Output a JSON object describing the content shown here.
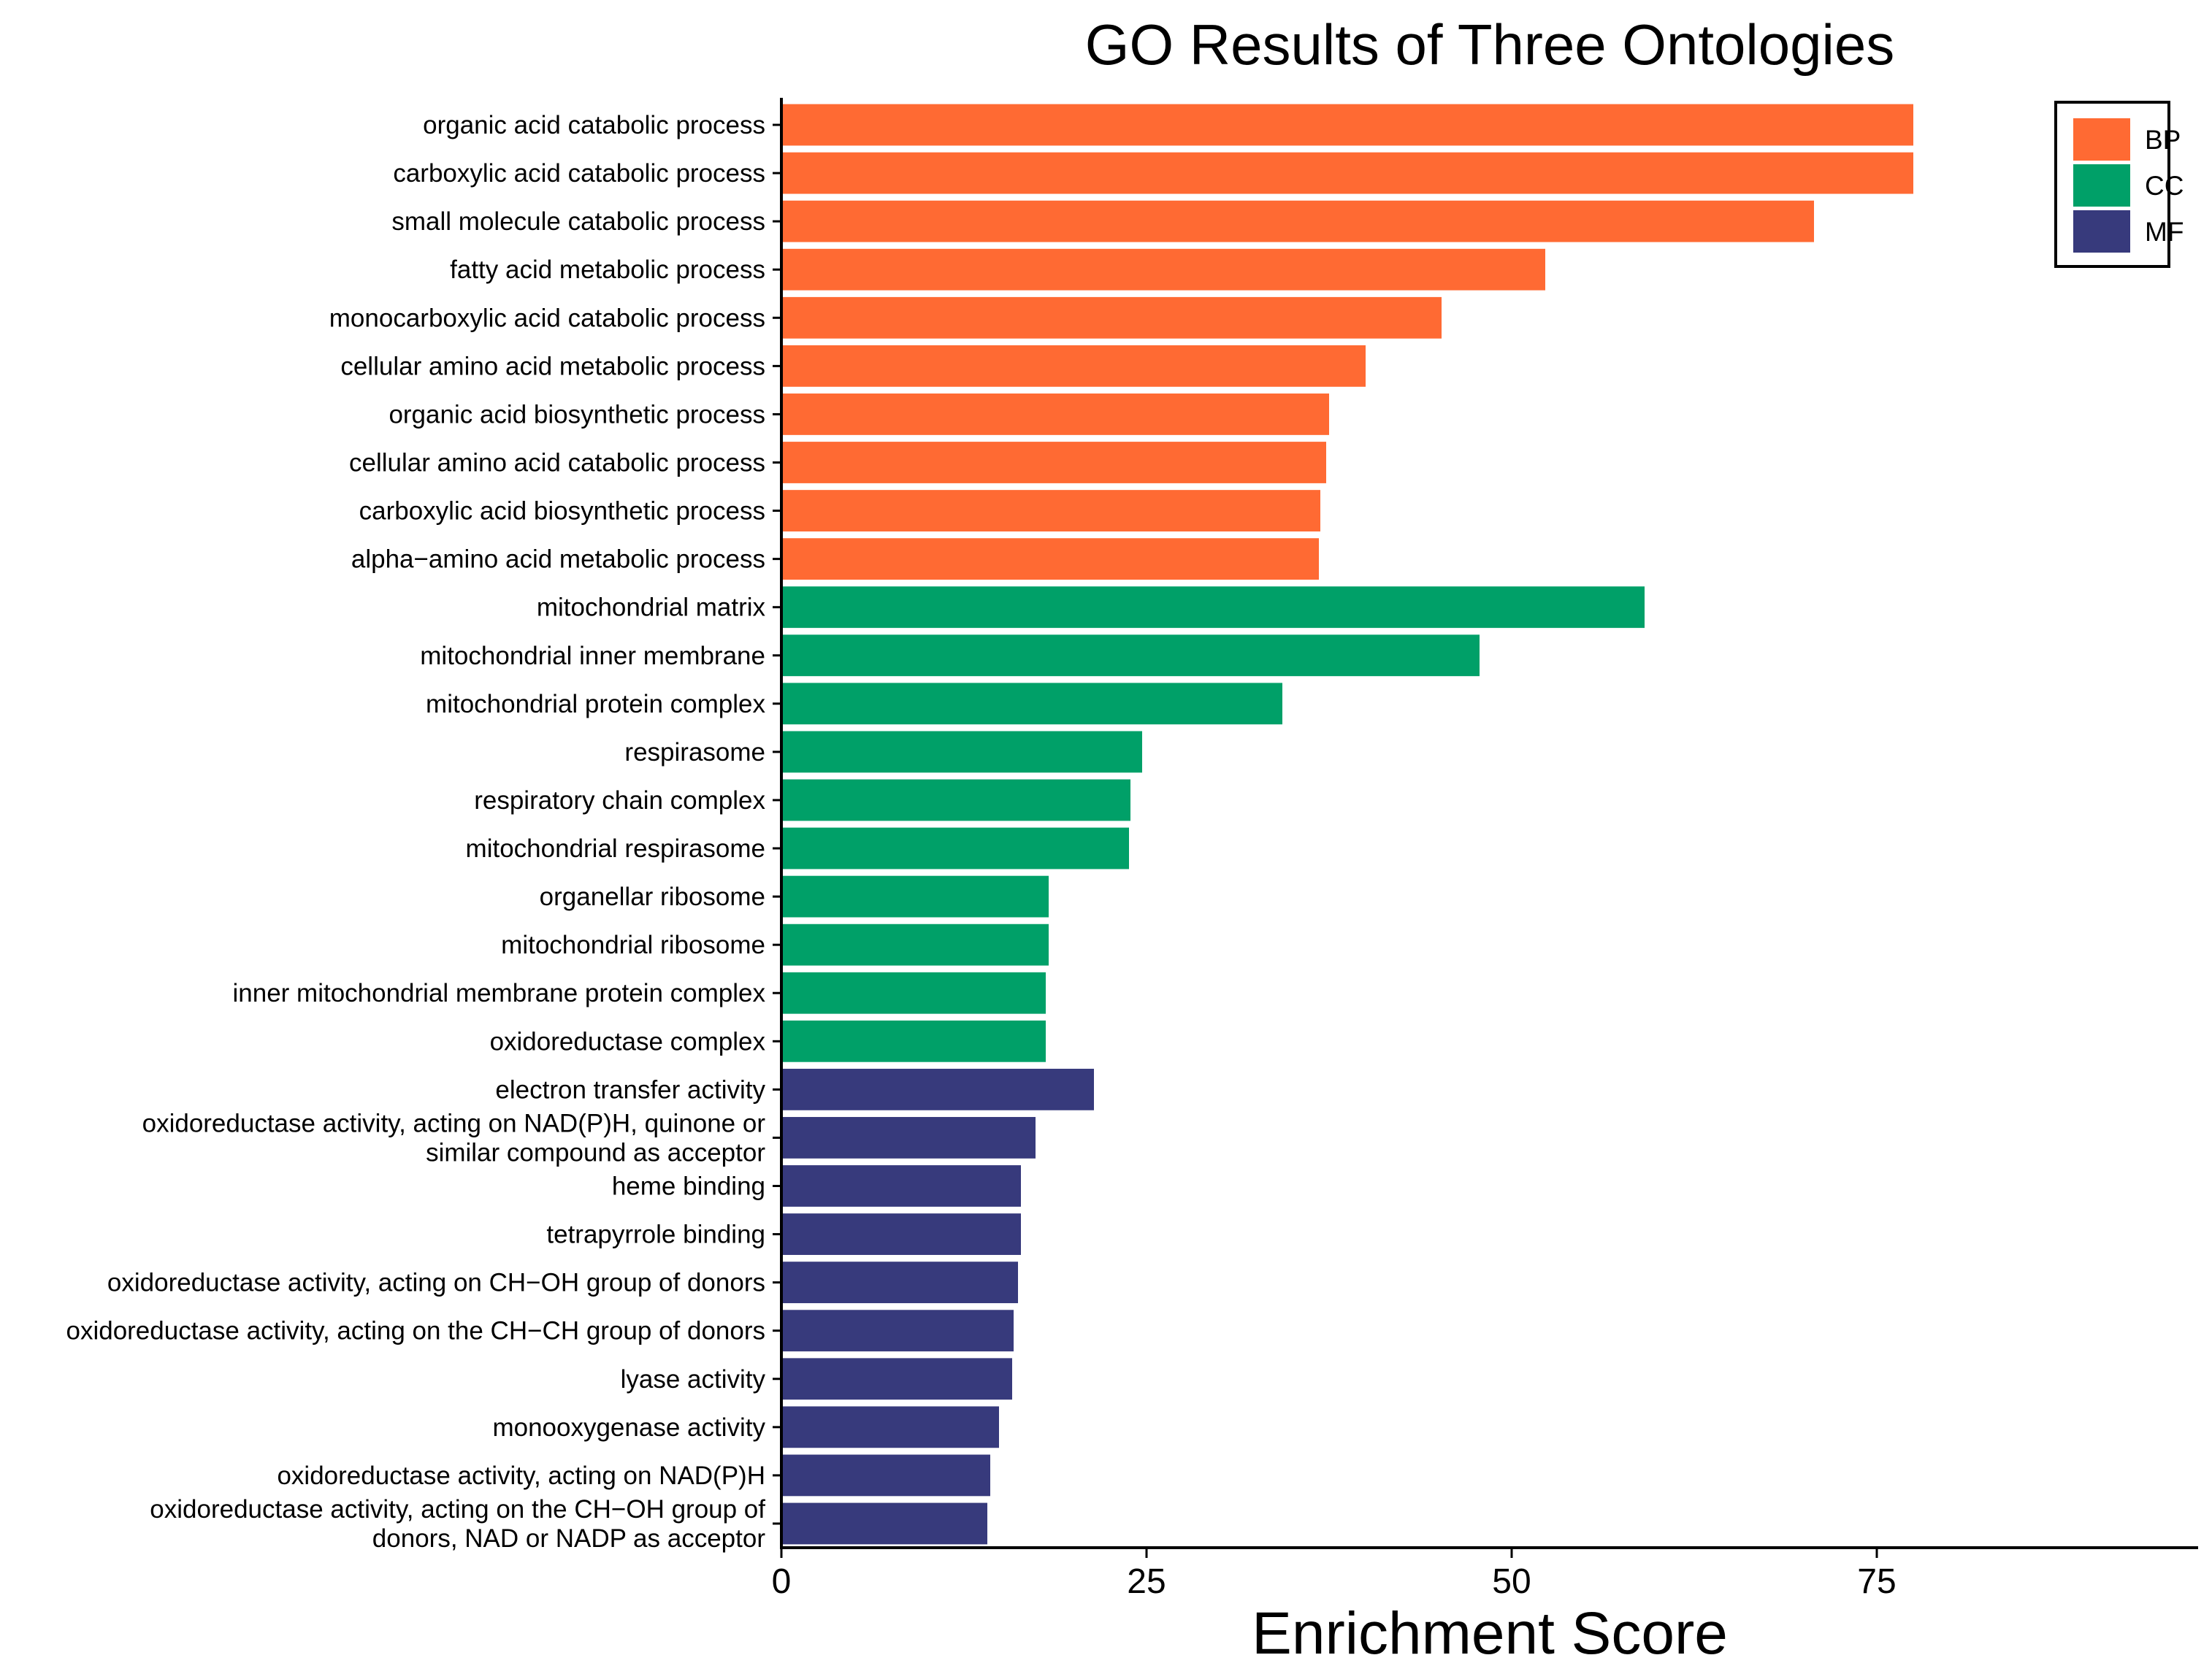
{
  "chart_data": {
    "type": "bar",
    "orientation": "horizontal",
    "title": "GO Results of Three Ontologies",
    "xlabel": "Enrichment Score",
    "ylabel": "",
    "xlim": [
      0,
      97
    ],
    "xticks": [
      0,
      25,
      50,
      75
    ],
    "grid": false,
    "legend_position": "top-right",
    "legend": [
      {
        "key": "BP",
        "label": "BP",
        "color": "#FF6A33"
      },
      {
        "key": "CC",
        "label": "CC",
        "color": "#00A068"
      },
      {
        "key": "MF",
        "label": "MF",
        "color": "#373A7C"
      }
    ],
    "bars": [
      {
        "label": "organic acid catabolic process",
        "value": 77.5,
        "group": "BP"
      },
      {
        "label": "carboxylic acid catabolic process",
        "value": 77.5,
        "group": "BP"
      },
      {
        "label": "small molecule catabolic process",
        "value": 70.7,
        "group": "BP"
      },
      {
        "label": "fatty acid metabolic process",
        "value": 52.3,
        "group": "BP"
      },
      {
        "label": "monocarboxylic acid catabolic process",
        "value": 45.2,
        "group": "BP"
      },
      {
        "label": "cellular amino acid metabolic process",
        "value": 40.0,
        "group": "BP"
      },
      {
        "label": "organic acid biosynthetic process",
        "value": 37.5,
        "group": "BP"
      },
      {
        "label": "cellular amino acid catabolic process",
        "value": 37.3,
        "group": "BP"
      },
      {
        "label": "carboxylic acid biosynthetic process",
        "value": 36.9,
        "group": "BP"
      },
      {
        "label": "alpha−amino acid metabolic process",
        "value": 36.8,
        "group": "BP"
      },
      {
        "label": "mitochondrial matrix",
        "value": 59.1,
        "group": "CC"
      },
      {
        "label": "mitochondrial inner membrane",
        "value": 47.8,
        "group": "CC"
      },
      {
        "label": "mitochondrial protein complex",
        "value": 34.3,
        "group": "CC"
      },
      {
        "label": "respirasome",
        "value": 24.7,
        "group": "CC"
      },
      {
        "label": "respiratory chain complex",
        "value": 23.9,
        "group": "CC"
      },
      {
        "label": "mitochondrial respirasome",
        "value": 23.8,
        "group": "CC"
      },
      {
        "label": "organellar ribosome",
        "value": 18.3,
        "group": "CC"
      },
      {
        "label": "mitochondrial ribosome",
        "value": 18.3,
        "group": "CC"
      },
      {
        "label": "inner mitochondrial membrane protein complex",
        "value": 18.1,
        "group": "CC"
      },
      {
        "label": "oxidoreductase complex",
        "value": 18.1,
        "group": "CC"
      },
      {
        "label": "electron transfer activity",
        "value": 21.4,
        "group": "MF"
      },
      {
        "label": "oxidoreductase activity, acting on NAD(P)H, quinone or\nsimilar compound as acceptor",
        "value": 17.4,
        "group": "MF"
      },
      {
        "label": "heme binding",
        "value": 16.4,
        "group": "MF"
      },
      {
        "label": "tetrapyrrole binding",
        "value": 16.4,
        "group": "MF"
      },
      {
        "label": "oxidoreductase activity, acting on CH−OH group of donors",
        "value": 16.2,
        "group": "MF"
      },
      {
        "label": "oxidoreductase activity, acting on the CH−CH group of donors",
        "value": 15.9,
        "group": "MF"
      },
      {
        "label": "lyase activity",
        "value": 15.8,
        "group": "MF"
      },
      {
        "label": "monooxygenase activity",
        "value": 14.9,
        "group": "MF"
      },
      {
        "label": "oxidoreductase activity, acting on NAD(P)H",
        "value": 14.3,
        "group": "MF"
      },
      {
        "label": "oxidoreductase activity, acting on the CH−OH group of\ndonors, NAD or NADP as acceptor",
        "value": 14.1,
        "group": "MF"
      }
    ]
  }
}
